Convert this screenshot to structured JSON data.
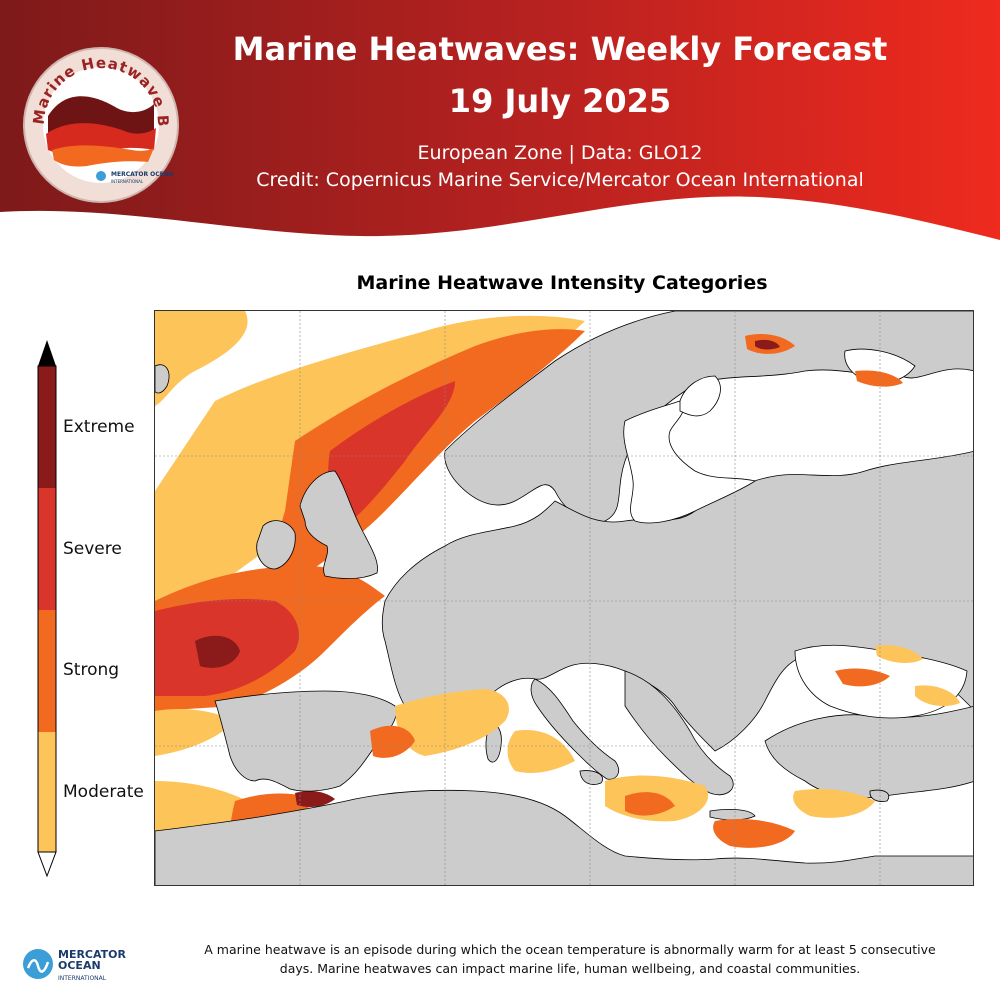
{
  "header": {
    "title_line1": "Marine Heatwaves: Weekly Forecast",
    "title_line2": "19 July 2025",
    "subtitle_line1": "European Zone | Data: GLO12",
    "subtitle_line2": "Credit: Copernicus Marine Service/Mercator Ocean International",
    "colors": {
      "dark_red": "#8e1c1c",
      "red": "#e8231f"
    }
  },
  "badge": {
    "text": "Marine Heatwave Bulletin",
    "logo_text": "MERCATOR OCEAN",
    "logo_sub": "INTERNATIONAL"
  },
  "map": {
    "title": "Marine Heatwave Intensity Categories",
    "land_color": "#cccccc",
    "ocean_color": "#ffffff"
  },
  "legend": {
    "categories": [
      {
        "label": "Extreme",
        "color": "#8b1a1a"
      },
      {
        "label": "Severe",
        "color": "#d9352a"
      },
      {
        "label": "Strong",
        "color": "#f26a1f"
      },
      {
        "label": "Moderate",
        "color": "#fdc45a"
      }
    ]
  },
  "footer": {
    "logo_text": "MERCATOR OCEAN",
    "logo_sub": "INTERNATIONAL",
    "description": "A marine heatwave is an episode during which the ocean temperature is abnormally warm for at least 5 consecutive days. Marine heatwaves can impact marine life, human wellbeing, and coastal communities."
  }
}
